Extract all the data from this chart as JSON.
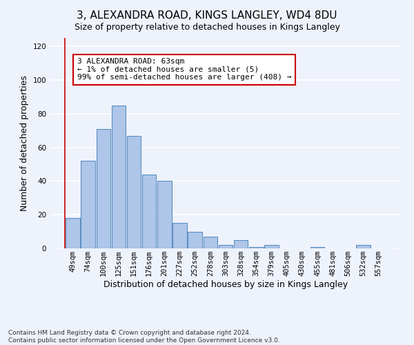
{
  "title": "3, ALEXANDRA ROAD, KINGS LANGLEY, WD4 8DU",
  "subtitle": "Size of property relative to detached houses in Kings Langley",
  "xlabel": "Distribution of detached houses by size in Kings Langley",
  "ylabel": "Number of detached properties",
  "footer_line1": "Contains HM Land Registry data © Crown copyright and database right 2024.",
  "footer_line2": "Contains public sector information licensed under the Open Government Licence v3.0.",
  "bar_labels": [
    "49sqm",
    "74sqm",
    "100sqm",
    "125sqm",
    "151sqm",
    "176sqm",
    "201sqm",
    "227sqm",
    "252sqm",
    "278sqm",
    "303sqm",
    "328sqm",
    "354sqm",
    "379sqm",
    "405sqm",
    "430sqm",
    "455sqm",
    "481sqm",
    "506sqm",
    "532sqm",
    "557sqm"
  ],
  "bar_values": [
    18,
    52,
    71,
    85,
    67,
    44,
    40,
    15,
    10,
    7,
    2,
    5,
    1,
    2,
    0,
    0,
    1,
    0,
    0,
    2,
    0
  ],
  "bar_color": "#aec6e8",
  "bar_edge_color": "#5a8fc2",
  "background_color": "#eef2fb",
  "grid_color": "#ffffff",
  "ylim": [
    0,
    125
  ],
  "yticks": [
    0,
    20,
    40,
    60,
    80,
    100,
    120
  ],
  "annotation_text": "3 ALEXANDRA ROAD: 63sqm\n← 1% of detached houses are smaller (5)\n99% of semi-detached houses are larger (408) →",
  "annotation_box_color": "#ffffff",
  "annotation_border_color": "#cc0000",
  "property_line_color": "#cc0000",
  "title_fontsize": 11,
  "subtitle_fontsize": 9,
  "axis_label_fontsize": 9,
  "tick_fontsize": 7.5,
  "annotation_fontsize": 8,
  "footer_fontsize": 6.5
}
